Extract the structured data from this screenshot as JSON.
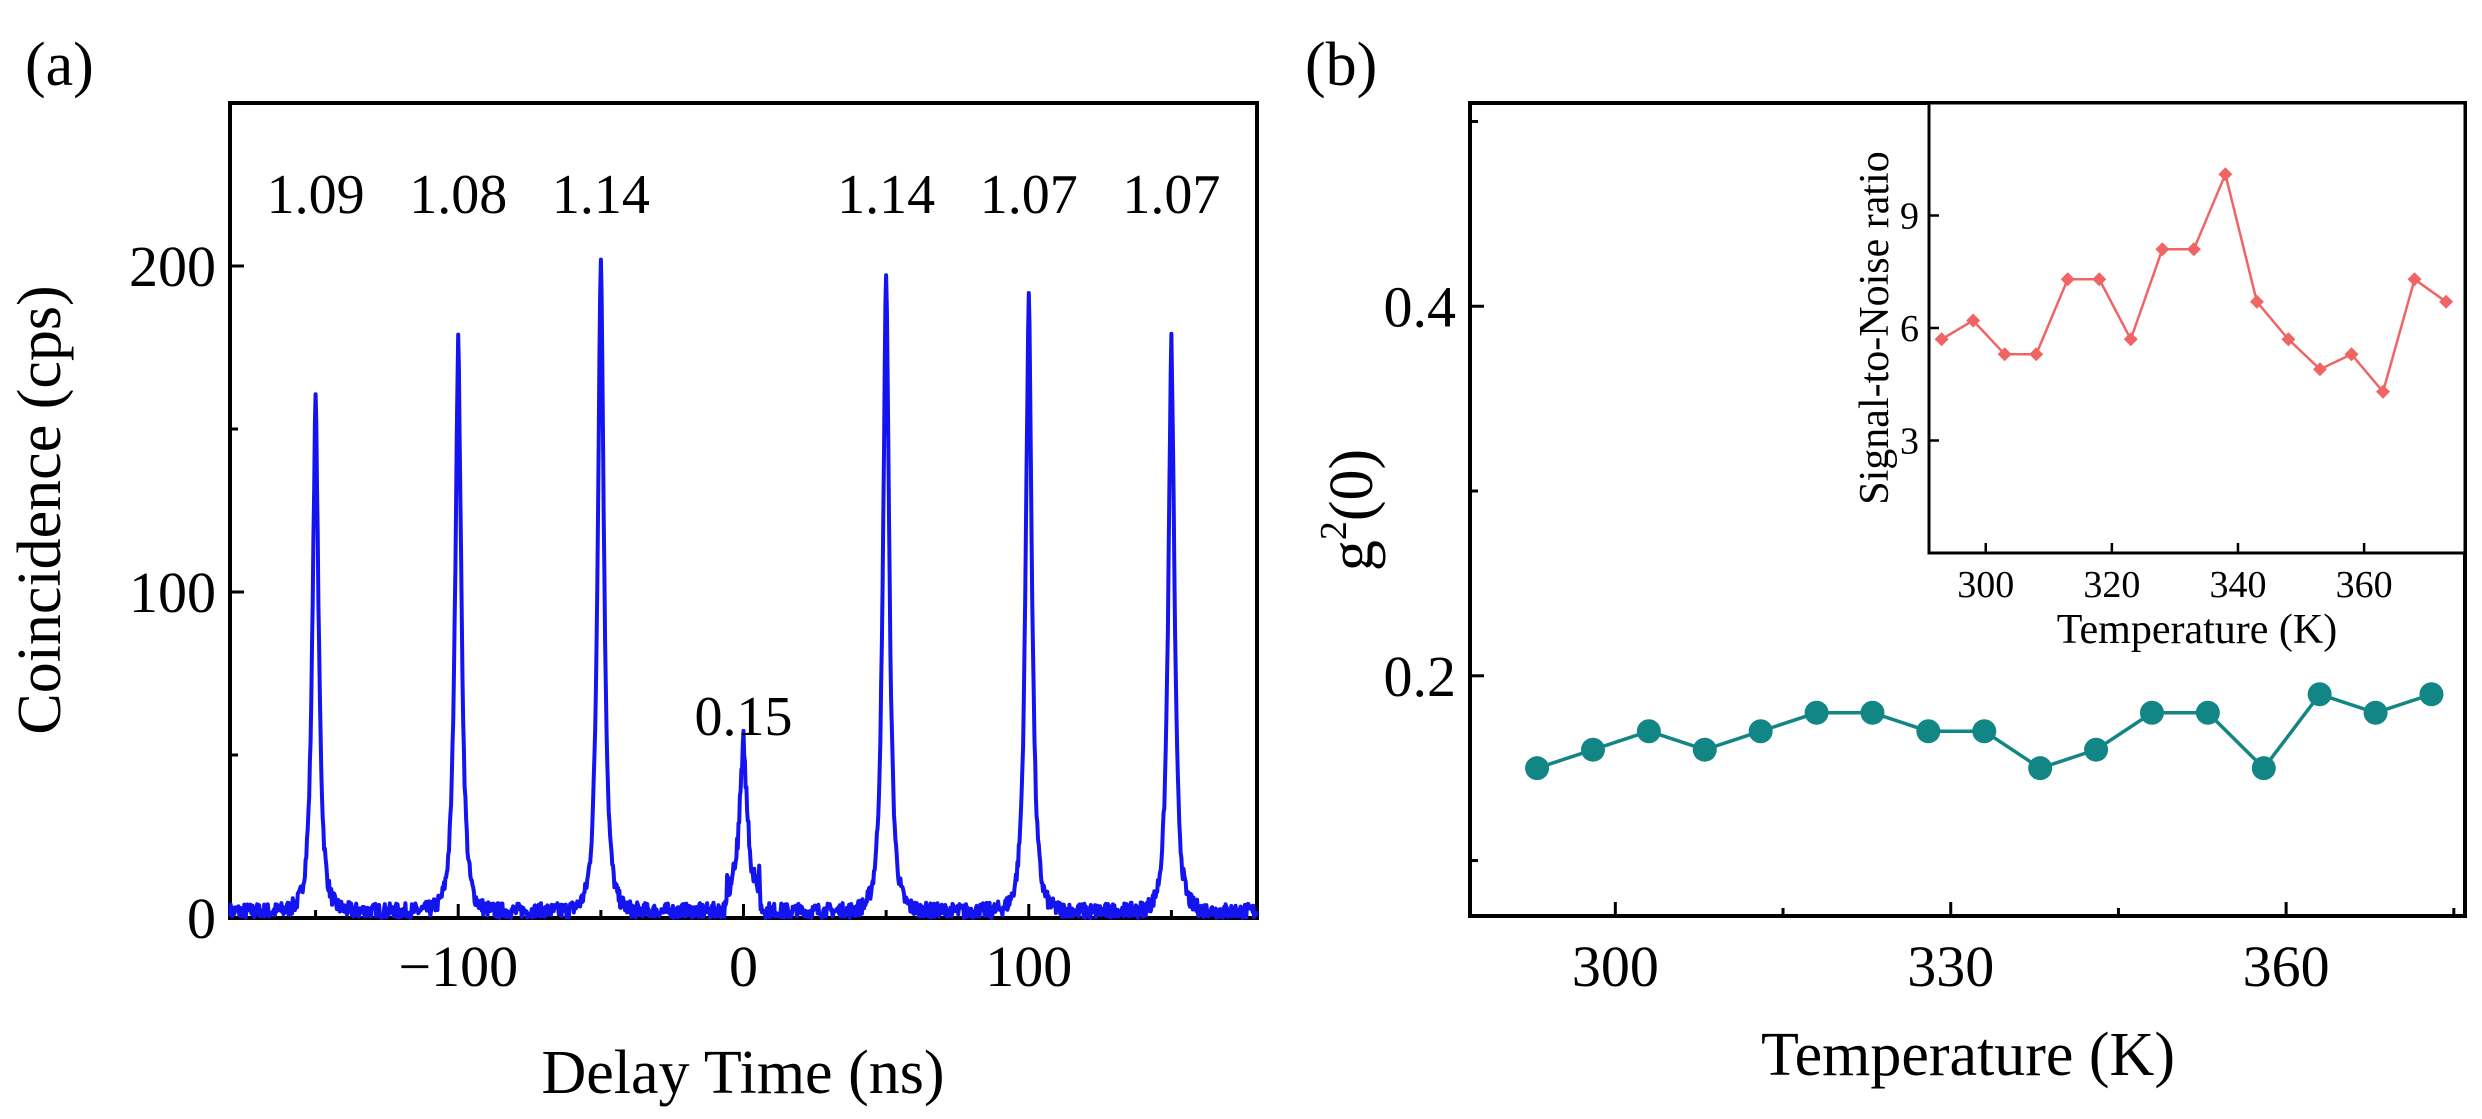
{
  "chart_data": [
    {
      "panel": "(a)",
      "type": "line",
      "xlabel": "Delay Time (ns)",
      "ylabel": "Coincidence (cps)",
      "xlim": [
        -180,
        180
      ],
      "ylim": [
        0,
        250
      ],
      "x_ticks": [
        -100,
        0,
        100
      ],
      "x_tick_labels": [
        "−100",
        "0",
        "100"
      ],
      "y_ticks": [
        0,
        100,
        200
      ],
      "y_tick_labels": [
        "0",
        "100",
        "200"
      ],
      "baseline": 2,
      "color": "#1414f0",
      "peaks": [
        {
          "x": -150,
          "height": 160,
          "label": "1.09"
        },
        {
          "x": -100,
          "height": 178,
          "label": "1.08"
        },
        {
          "x": -50,
          "height": 204,
          "label": "1.14"
        },
        {
          "x": 0,
          "height": 47,
          "label": "0.15"
        },
        {
          "x": 50,
          "height": 199,
          "label": "1.14"
        },
        {
          "x": 100,
          "height": 192,
          "label": "1.07"
        },
        {
          "x": 150,
          "height": 177,
          "label": "1.07"
        }
      ]
    },
    {
      "panel": "(b)",
      "type": "scatter",
      "xlabel": "Temperature (K)",
      "ylabel_main": "g",
      "ylabel_sup": "2",
      "ylabel_tail": "(0)",
      "xlim": [
        287,
        376
      ],
      "ylim": [
        0.07,
        0.51
      ],
      "x_ticks": [
        300,
        330,
        360
      ],
      "x_tick_labels": [
        "300",
        "330",
        "360"
      ],
      "y_ticks": [
        0.2,
        0.4
      ],
      "y_tick_labels": [
        "0.2",
        "0.4"
      ],
      "y_minor_ticks": [
        0.1,
        0.3,
        0.5
      ],
      "color": "#128585",
      "x": [
        293,
        298,
        303,
        308,
        313,
        318,
        323,
        328,
        333,
        338,
        343,
        348,
        353,
        358,
        363,
        368,
        373
      ],
      "y": [
        0.15,
        0.16,
        0.17,
        0.16,
        0.17,
        0.18,
        0.18,
        0.17,
        0.17,
        0.15,
        0.16,
        0.18,
        0.18,
        0.15,
        0.19,
        0.18,
        0.19
      ],
      "inset": {
        "type": "line",
        "xlabel": "Temperature (K)",
        "ylabel": "Signal-to-Noise ratio",
        "xlim": [
          291,
          376
        ],
        "ylim": [
          0,
          12
        ],
        "x_ticks": [
          300,
          320,
          340,
          360
        ],
        "x_tick_labels": [
          "300",
          "320",
          "340",
          "360"
        ],
        "y_ticks": [
          3,
          6,
          9
        ],
        "y_tick_labels": [
          "3",
          "6",
          "9"
        ],
        "color": "#f06464",
        "x": [
          293,
          298,
          303,
          308,
          313,
          318,
          323,
          328,
          333,
          338,
          343,
          348,
          353,
          358,
          363,
          368,
          373
        ],
        "y": [
          5.7,
          6.2,
          5.3,
          5.3,
          7.3,
          7.3,
          5.7,
          8.1,
          8.1,
          10.1,
          6.7,
          5.7,
          4.9,
          5.3,
          4.3,
          7.3,
          6.7
        ]
      }
    }
  ]
}
